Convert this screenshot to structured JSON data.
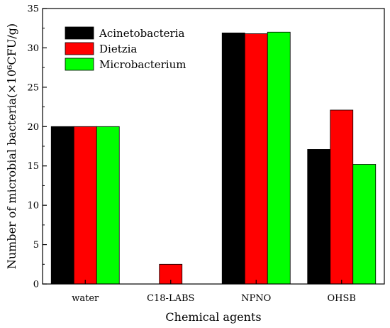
{
  "chart_data": {
    "type": "bar",
    "xlabel": "Chemical agents",
    "ylabel": "Number of microbial bacteria(×10⁶CFU/g)",
    "categories": [
      "water",
      "C18-LABS",
      "NPNO",
      "OHSB"
    ],
    "ylim": [
      0,
      35
    ],
    "yticks": [
      0,
      5,
      10,
      15,
      20,
      25,
      30,
      35
    ],
    "grid": false,
    "legend_position": "top-left",
    "series": [
      {
        "name": "Acinetobacteria",
        "color": "#000000",
        "values": [
          20.0,
          0,
          31.9,
          17.1
        ]
      },
      {
        "name": "Dietzia",
        "color": "#ff0000",
        "values": [
          20.0,
          2.5,
          31.8,
          22.1
        ]
      },
      {
        "name": "Microbacterium",
        "color": "#00ff00",
        "values": [
          20.0,
          0,
          32.0,
          15.2
        ]
      }
    ]
  }
}
